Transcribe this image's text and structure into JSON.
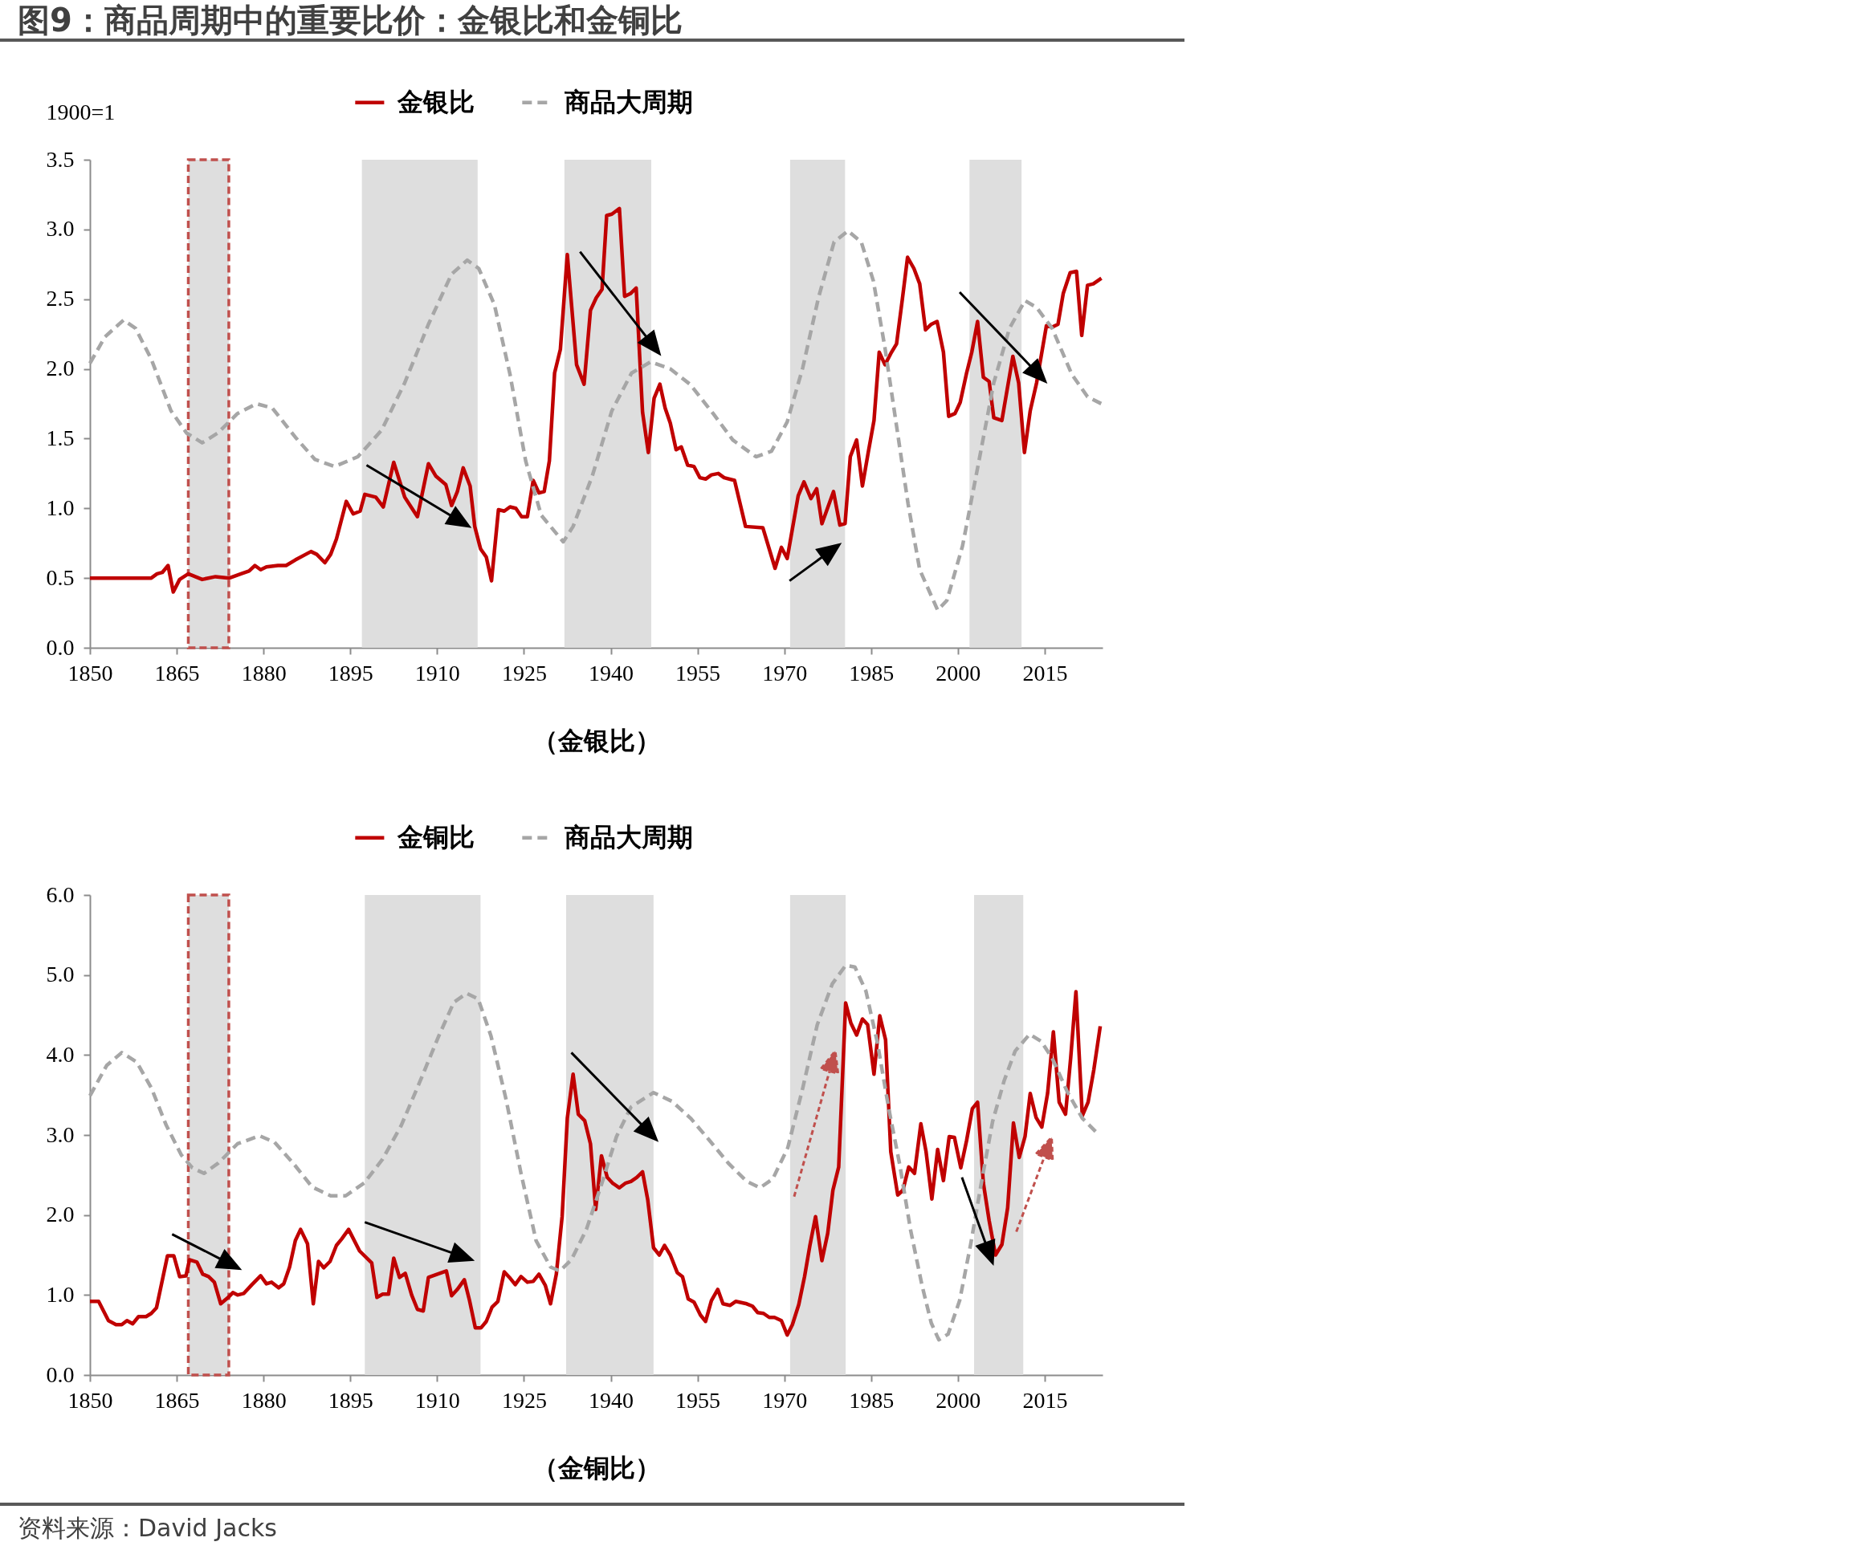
{
  "chart_data": [
    {
      "type": "line",
      "title": "图9：商品周期中的重要比价：金银比和金铜比",
      "ylabel": "1900=1",
      "xlabel": "（金银比）",
      "xlim": [
        1850,
        2025
      ],
      "xticks": [
        1850,
        1865,
        1880,
        1895,
        1910,
        1925,
        1940,
        1955,
        1970,
        1985,
        2000,
        2015
      ],
      "ylim": [
        0,
        3.5
      ],
      "yticks": [
        {
          "value": 0,
          "label": "0.0"
        },
        0.5,
        {
          "value": 1,
          "label": "1.0"
        },
        1.5,
        {
          "value": 2,
          "label": "2.0"
        },
        2.5,
        {
          "value": 3,
          "label": "3.0"
        },
        3.5
      ],
      "legend": "top",
      "bands": [
        {
          "axis": "x",
          "from": 1867,
          "to": 1874,
          "color": "#dedede"
        },
        {
          "axis": "x",
          "from": 1897,
          "to": 1917,
          "color": "#dedede"
        },
        {
          "axis": "x",
          "from": 1932,
          "to": 1947,
          "color": "#dedede"
        },
        {
          "axis": "x",
          "from": 1971,
          "to": 1980.5,
          "color": "#dedede"
        },
        {
          "axis": "x",
          "from": 2002,
          "to": 2011,
          "color": "#dedede"
        }
      ],
      "series": [
        {
          "name": "金银比",
          "color": "#c00000",
          "x": [
            1850,
            1860.6,
            1861.6,
            1862.5,
            1863.5,
            1864.4,
            1865.5,
            1867,
            1869.4,
            1871.7,
            1874.1,
            1876.1,
            1877.5,
            1878.5,
            1879.5,
            1880.5,
            1882.5,
            1883.9,
            1885.5,
            1888.2,
            1889.2,
            1890.6,
            1891.6,
            1892.6,
            1894.3,
            1895.5,
            1896.7,
            1897.5,
            1899.4,
            1900.7,
            1902.5,
            1904.4,
            1906.6,
            1908.5,
            1909.8,
            1911.5,
            1912.5,
            1913.5,
            1914.5,
            1915.7,
            1916.5,
            1917.5,
            1918.5,
            1919.4,
            1920.6,
            1921.6,
            1922.6,
            1923.6,
            1924.6,
            1925.6,
            1926.6,
            1927.6,
            1928.5,
            1929.4,
            1930.3,
            1931.3,
            1932.5,
            1934.1,
            1935.4,
            1936.5,
            1937.5,
            1938.5,
            1939.3,
            1940.2,
            1941.5,
            1942.4,
            1943.4,
            1944.4,
            1945.5,
            1946.5,
            1947.5,
            1948.5,
            1949.4,
            1950.3,
            1951.3,
            1952.2,
            1953.3,
            1954.4,
            1955.4,
            1956.4,
            1957.4,
            1958.6,
            1959.6,
            1961.4,
            1963.3,
            1966.3,
            1968.4,
            1969.5,
            1970.5,
            1972.4,
            1973.4,
            1974.6,
            1975.6,
            1976.5,
            1978.5,
            1979.6,
            1980.5,
            1981.4,
            1982.5,
            1983.5,
            1984.5,
            1985.5,
            1986.4,
            1987.4,
            1988.4,
            1989.4,
            1990.4,
            1991.3,
            1992.4,
            1993.4,
            1994.4,
            1995.4,
            1996.4,
            1997.5,
            1998.4,
            1999.5,
            2000.4,
            2001.5,
            2002.4,
            2003.4,
            2004.4,
            2005.4,
            2006.2,
            2007.6,
            2009.5,
            2010.5,
            2011.5,
            2012.5,
            2013.6,
            2015.3,
            2016.3,
            2017.3,
            2018.2,
            2019.4,
            2020.5,
            2021.4,
            2022.4,
            2023.4,
            2024.8
          ],
          "values": [
            0.5,
            0.5,
            0.53,
            0.54,
            0.59,
            0.4,
            0.49,
            0.53,
            0.49,
            0.51,
            0.5,
            0.53,
            0.55,
            0.59,
            0.56,
            0.58,
            0.59,
            0.59,
            0.63,
            0.69,
            0.67,
            0.61,
            0.67,
            0.78,
            1.05,
            0.96,
            0.98,
            1.1,
            1.08,
            1.01,
            1.33,
            1.08,
            0.94,
            1.32,
            1.23,
            1.17,
            1.02,
            1.12,
            1.29,
            1.16,
            0.87,
            0.71,
            0.65,
            0.48,
            0.99,
            0.98,
            1.01,
            1.0,
            0.94,
            0.94,
            1.2,
            1.11,
            1.12,
            1.34,
            1.97,
            2.14,
            2.82,
            2.03,
            1.89,
            2.42,
            2.51,
            2.57,
            3.1,
            3.11,
            3.15,
            2.52,
            2.54,
            2.58,
            1.69,
            1.4,
            1.79,
            1.89,
            1.72,
            1.61,
            1.42,
            1.44,
            1.31,
            1.3,
            1.22,
            1.21,
            1.24,
            1.25,
            1.22,
            1.2,
            0.87,
            0.86,
            0.57,
            0.72,
            0.64,
            1.09,
            1.19,
            1.07,
            1.14,
            0.89,
            1.12,
            0.88,
            0.89,
            1.37,
            1.49,
            1.16,
            1.4,
            1.63,
            2.12,
            2.03,
            2.11,
            2.18,
            2.5,
            2.8,
            2.72,
            2.61,
            2.28,
            2.32,
            2.34,
            2.12,
            1.66,
            1.68,
            1.76,
            1.97,
            2.12,
            2.34,
            1.94,
            1.91,
            1.65,
            1.63,
            2.09,
            1.9,
            1.4,
            1.7,
            1.9,
            2.31,
            2.3,
            2.32,
            2.54,
            2.69,
            2.7,
            2.24,
            2.6,
            2.61,
            2.65
          ]
        },
        {
          "name": "商品大周期",
          "color": "#a6a6a6",
          "line_style": "dashed",
          "x": [
            1850,
            1852.6,
            1855.8,
            1857.9,
            1860.6,
            1864,
            1866.7,
            1869.4,
            1872.1,
            1875.5,
            1878.8,
            1881.5,
            1885.5,
            1888.9,
            1892.3,
            1896.3,
            1900.4,
            1904.4,
            1908.5,
            1912.5,
            1915.2,
            1917.2,
            1919.9,
            1922.6,
            1925.3,
            1928,
            1931.8,
            1933.5,
            1936.8,
            1940.2,
            1943.6,
            1946.9,
            1950.3,
            1953.7,
            1957.7,
            1961.1,
            1965.1,
            1967.8,
            1970.5,
            1973.2,
            1975.9,
            1978.6,
            1981,
            1983.3,
            1985.4,
            1987.4,
            1989.4,
            1991.4,
            1993.4,
            1996.5,
            1998.1,
            2000.8,
            2003.5,
            2006.2,
            2008.9,
            2011.6,
            2013.6,
            2016.3,
            2019.7,
            2022.4,
            2024.8
          ],
          "values": [
            2.04,
            2.23,
            2.35,
            2.29,
            2.07,
            1.7,
            1.54,
            1.47,
            1.54,
            1.68,
            1.75,
            1.72,
            1.51,
            1.35,
            1.3,
            1.37,
            1.56,
            1.9,
            2.32,
            2.68,
            2.78,
            2.72,
            2.46,
            1.96,
            1.34,
            0.95,
            0.76,
            0.87,
            1.23,
            1.7,
            1.97,
            2.05,
            2.0,
            1.89,
            1.68,
            1.49,
            1.37,
            1.41,
            1.62,
            2.01,
            2.51,
            2.91,
            2.99,
            2.91,
            2.63,
            2.15,
            1.59,
            1.03,
            0.56,
            0.27,
            0.34,
            0.73,
            1.31,
            1.9,
            2.29,
            2.49,
            2.44,
            2.29,
            1.96,
            1.8,
            1.75
          ]
        }
      ]
    },
    {
      "type": "line",
      "xlabel": "（金铜比）",
      "xlim": [
        1850,
        2025
      ],
      "xticks": [
        1850,
        1865,
        1880,
        1895,
        1910,
        1925,
        1940,
        1955,
        1970,
        1985,
        2000,
        2015
      ],
      "ylim": [
        0,
        6
      ],
      "yticks": [
        {
          "value": 0,
          "label": "0.0"
        },
        {
          "value": 1,
          "label": "1.0"
        },
        {
          "value": 2,
          "label": "2.0"
        },
        {
          "value": 3,
          "label": "3.0"
        },
        {
          "value": 4,
          "label": "4.0"
        },
        {
          "value": 5,
          "label": "5.0"
        },
        {
          "value": 6,
          "label": "6.0"
        }
      ],
      "legend": "top",
      "annotations": [
        "资料来源：David Jacks"
      ],
      "bands": [
        {
          "axis": "x",
          "from": 1867,
          "to": 1874,
          "color": "#dedede"
        },
        {
          "axis": "x",
          "from": 1897.5,
          "to": 1917.5,
          "color": "#dedede"
        },
        {
          "axis": "x",
          "from": 1932.3,
          "to": 1947.4,
          "color": "#dedede"
        },
        {
          "axis": "x",
          "from": 1971,
          "to": 1980.6,
          "color": "#dedede"
        },
        {
          "axis": "x",
          "from": 2002.8,
          "to": 2011.3,
          "color": "#dedede"
        }
      ],
      "series": [
        {
          "name": "金铜比",
          "color": "#c00000",
          "x": [
            1850,
            1851.5,
            1853.2,
            1854.5,
            1855.5,
            1856.4,
            1857.4,
            1858.4,
            1859.7,
            1860.6,
            1861.5,
            1863.4,
            1864.5,
            1865.5,
            1866.6,
            1867.2,
            1868.5,
            1869.5,
            1870.5,
            1871.5,
            1872.6,
            1873.9,
            1874.7,
            1875.5,
            1876.6,
            1878,
            1879.5,
            1880.5,
            1881.4,
            1882.6,
            1883.5,
            1884.5,
            1885.5,
            1886.4,
            1887.6,
            1888.6,
            1889.5,
            1890.4,
            1891.5,
            1892.6,
            1893.5,
            1894.7,
            1896.6,
            1898.7,
            1899.6,
            1900.6,
            1901.6,
            1902.5,
            1903.5,
            1904.5,
            1905.6,
            1906.6,
            1907.6,
            1908.5,
            1911.6,
            1912.5,
            1913.5,
            1914.7,
            1915.6,
            1916.6,
            1917.6,
            1918.5,
            1919.5,
            1920.5,
            1921.6,
            1922.5,
            1923.5,
            1924.5,
            1925.6,
            1926.6,
            1927.6,
            1928.7,
            1929.6,
            1930.6,
            1931.6,
            1932.5,
            1933.5,
            1934.4,
            1935.5,
            1936.5,
            1937.4,
            1938.4,
            1939.4,
            1940.3,
            1941.5,
            1942.6,
            1943.5,
            1944.5,
            1945.5,
            1946.4,
            1947.4,
            1948.4,
            1949.3,
            1950.3,
            1951.5,
            1952.4,
            1953.4,
            1954.4,
            1955.5,
            1956.4,
            1957.4,
            1958.5,
            1959.4,
            1960.6,
            1961.6,
            1963.5,
            1964.5,
            1965.4,
            1966.4,
            1967.4,
            1968.3,
            1969.5,
            1970.5,
            1971.4,
            1972.5,
            1973.5,
            1974.4,
            1975.4,
            1976.5,
            1977.5,
            1978.4,
            1979.4,
            1980.6,
            1981.5,
            1982.5,
            1983.5,
            1984.4,
            1985.5,
            1986.5,
            1987.5,
            1988.4,
            1989.6,
            1990.5,
            1991.5,
            1992.5,
            1993.6,
            1994.5,
            1995.5,
            1996.5,
            1997.5,
            1998.5,
            1999.4,
            2000.5,
            2001.5,
            2002.5,
            2003.4,
            2004.4,
            2005.4,
            2006.5,
            2007.6,
            2008.6,
            2009.6,
            2010.6,
            2011.6,
            2012.5,
            2013.5,
            2014.5,
            2015.5,
            2016.5,
            2017.5,
            2018.6,
            2019.5,
            2020.4,
            2021.5,
            2022.5,
            2023.5,
            2024.6
          ],
          "values": [
            0.92,
            0.92,
            0.68,
            0.63,
            0.63,
            0.68,
            0.64,
            0.73,
            0.73,
            0.77,
            0.84,
            1.49,
            1.49,
            1.23,
            1.24,
            1.44,
            1.41,
            1.26,
            1.23,
            1.16,
            0.89,
            0.97,
            1.03,
            1.0,
            1.02,
            1.13,
            1.24,
            1.14,
            1.16,
            1.09,
            1.14,
            1.35,
            1.68,
            1.82,
            1.64,
            0.89,
            1.42,
            1.34,
            1.42,
            1.62,
            1.7,
            1.82,
            1.55,
            1.4,
            0.97,
            1.01,
            1.01,
            1.46,
            1.22,
            1.27,
            1.0,
            0.82,
            0.8,
            1.22,
            1.3,
            0.99,
            1.07,
            1.19,
            0.93,
            0.59,
            0.59,
            0.67,
            0.85,
            0.92,
            1.29,
            1.22,
            1.13,
            1.23,
            1.16,
            1.17,
            1.26,
            1.12,
            0.89,
            1.26,
            1.98,
            3.21,
            3.76,
            3.26,
            3.18,
            2.89,
            2.07,
            2.74,
            2.47,
            2.4,
            2.34,
            2.4,
            2.42,
            2.47,
            2.54,
            2.19,
            1.59,
            1.5,
            1.62,
            1.5,
            1.28,
            1.23,
            0.95,
            0.91,
            0.75,
            0.67,
            0.93,
            1.07,
            0.89,
            0.87,
            0.92,
            0.89,
            0.86,
            0.78,
            0.77,
            0.72,
            0.72,
            0.68,
            0.5,
            0.63,
            0.88,
            1.23,
            1.61,
            1.98,
            1.43,
            1.77,
            2.31,
            2.6,
            4.65,
            4.4,
            4.25,
            4.45,
            4.38,
            3.76,
            4.49,
            4.19,
            2.79,
            2.25,
            2.31,
            2.6,
            2.52,
            3.14,
            2.79,
            2.2,
            2.82,
            2.43,
            2.98,
            2.97,
            2.59,
            2.93,
            3.33,
            3.41,
            2.4,
            1.93,
            1.5,
            1.63,
            2.09,
            3.15,
            2.72,
            2.98,
            3.52,
            3.22,
            3.1,
            3.52,
            4.29,
            3.41,
            3.26,
            3.97,
            4.79,
            3.24,
            3.41,
            3.82,
            4.36
          ]
        },
        {
          "name": "商品大周期",
          "color": "#a6a6a6",
          "line_style": "dashed",
          "x": [
            1850,
            1852.9,
            1855.5,
            1858.1,
            1860.6,
            1863.2,
            1865.8,
            1867.7,
            1869.7,
            1872.2,
            1875.5,
            1879.3,
            1881.9,
            1885.1,
            1888.4,
            1891.6,
            1894.2,
            1897.4,
            1900.6,
            1903.8,
            1907.1,
            1910.3,
            1912.9,
            1915.1,
            1917.1,
            1919.3,
            1921.9,
            1924.5,
            1927.1,
            1929.6,
            1931.2,
            1933.2,
            1935.8,
            1938.4,
            1941,
            1943.5,
            1947.4,
            1950.6,
            1953.8,
            1957.1,
            1960.3,
            1963.5,
            1965.8,
            1968,
            1970.6,
            1973.2,
            1975.7,
            1978.3,
            1980.6,
            1982.2,
            1984.1,
            1986.1,
            1988,
            1990,
            1991.8,
            1993.8,
            1995.4,
            1996.7,
            1998.3,
            2000.3,
            2002.2,
            2004.1,
            2006,
            2008,
            2009.9,
            2012.4,
            2014.4,
            2016.3,
            2018.9,
            2021.5,
            2024.4
          ],
          "values": [
            3.49,
            3.87,
            4.03,
            3.91,
            3.59,
            3.12,
            2.75,
            2.59,
            2.52,
            2.65,
            2.89,
            2.99,
            2.91,
            2.65,
            2.35,
            2.24,
            2.24,
            2.4,
            2.7,
            3.12,
            3.68,
            4.24,
            4.66,
            4.77,
            4.7,
            4.24,
            3.45,
            2.52,
            1.68,
            1.35,
            1.3,
            1.44,
            1.82,
            2.38,
            2.98,
            3.35,
            3.53,
            3.42,
            3.21,
            2.93,
            2.65,
            2.42,
            2.34,
            2.45,
            2.84,
            3.59,
            4.38,
            4.89,
            5.12,
            5.1,
            4.8,
            4.15,
            3.35,
            2.61,
            1.82,
            1.12,
            0.65,
            0.44,
            0.51,
            0.93,
            1.63,
            2.42,
            3.17,
            3.68,
            4.05,
            4.26,
            4.17,
            3.96,
            3.54,
            3.21,
            3.0
          ]
        }
      ]
    }
  ]
}
